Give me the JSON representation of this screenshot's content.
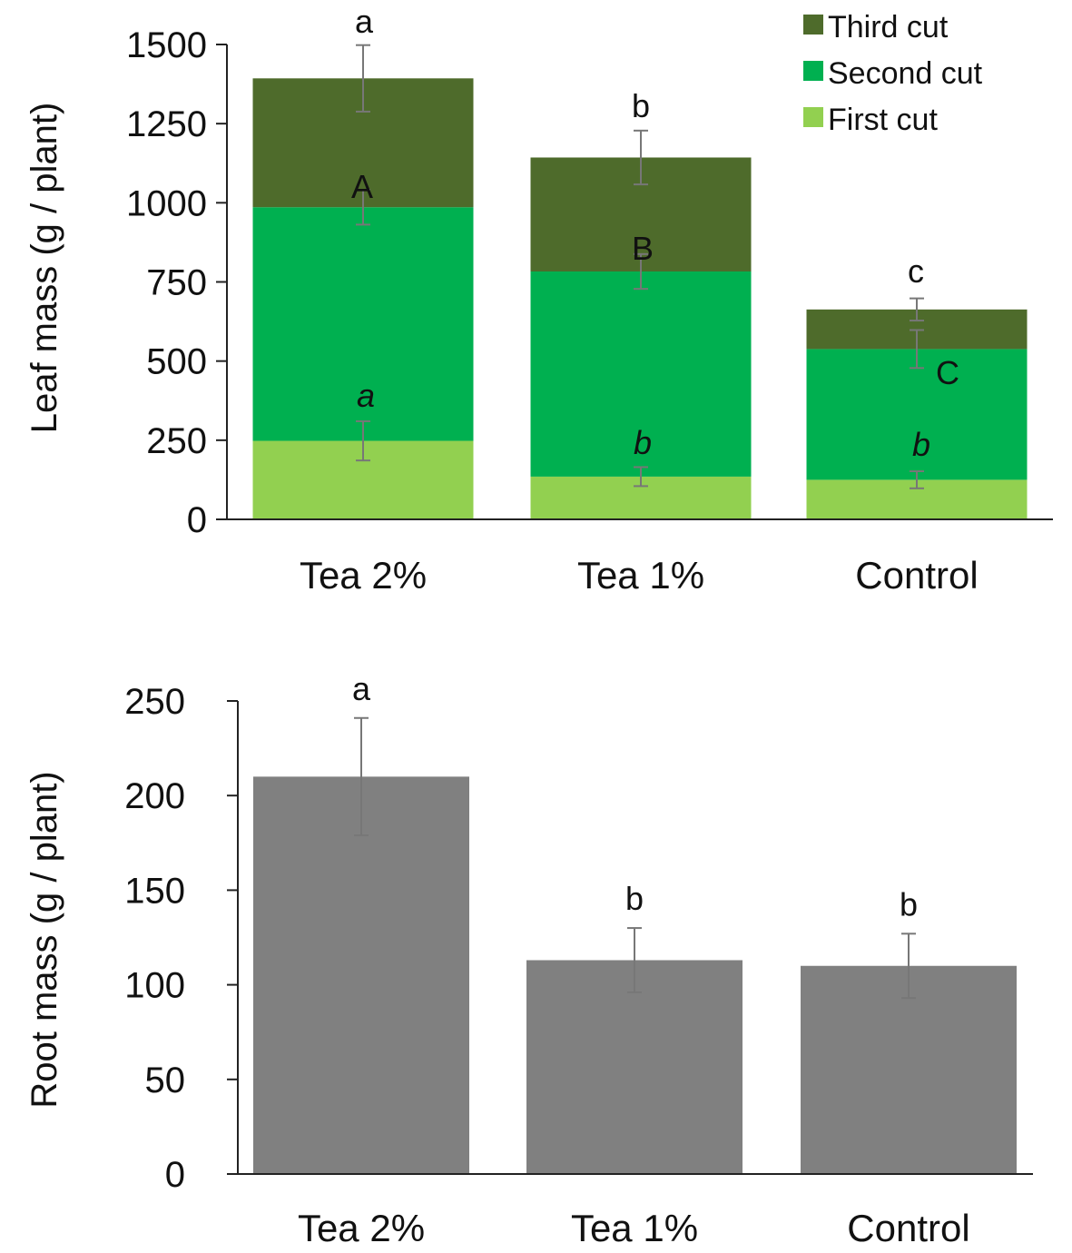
{
  "colors": {
    "third_cut": "#4e6b2b",
    "second_cut": "#00b050",
    "first_cut": "#92d050",
    "root_bar": "#808080",
    "axis": "#222222",
    "error_bar": "#777777"
  },
  "chart_data": [
    {
      "type": "bar",
      "stacked": true,
      "title": "",
      "xlabel": "",
      "ylabel": "Leaf mass (g / plant)",
      "ylim": [
        0,
        1500
      ],
      "yticks": [
        0,
        250,
        500,
        750,
        1000,
        1250,
        1500
      ],
      "ytick_labels": [
        "0",
        "250",
        "500",
        "750",
        "1000",
        "1250",
        "1500"
      ],
      "categories": [
        "Tea 2%",
        "Tea 1%",
        "Control"
      ],
      "series": [
        {
          "name": "First cut",
          "color_key": "first_cut",
          "values": [
            248,
            135,
            125
          ],
          "error": [
            62,
            30,
            27
          ],
          "letters": [
            "a",
            "b",
            "b"
          ],
          "letter_style": "italic"
        },
        {
          "name": "Second cut",
          "color_key": "second_cut",
          "values": [
            738,
            648,
            413
          ],
          "error": [
            55,
            55,
            60
          ],
          "letters": [
            "A",
            "B",
            "C"
          ],
          "letter_style": "upper"
        },
        {
          "name": "Third cut",
          "color_key": "third_cut",
          "values": [
            407,
            360,
            125
          ],
          "error": [
            105,
            85,
            35
          ],
          "letters": [
            "a",
            "b",
            "c"
          ],
          "letter_style": "lower"
        }
      ],
      "legend": {
        "placement": "top-right",
        "entries": [
          "Third cut",
          "Second cut",
          "First cut"
        ]
      }
    },
    {
      "type": "bar",
      "title": "",
      "xlabel": "",
      "ylabel": "Root mass (g / plant)",
      "ylim": [
        0,
        250
      ],
      "yticks": [
        0,
        50,
        100,
        150,
        200,
        250
      ],
      "ytick_labels": [
        "0",
        "50",
        "100",
        "150",
        "200",
        "250"
      ],
      "categories": [
        "Tea 2%",
        "Tea 1%",
        "Control"
      ],
      "values": [
        210,
        113,
        110
      ],
      "error": [
        31,
        17,
        17
      ],
      "letters": [
        "a",
        "b",
        "b"
      ]
    }
  ]
}
